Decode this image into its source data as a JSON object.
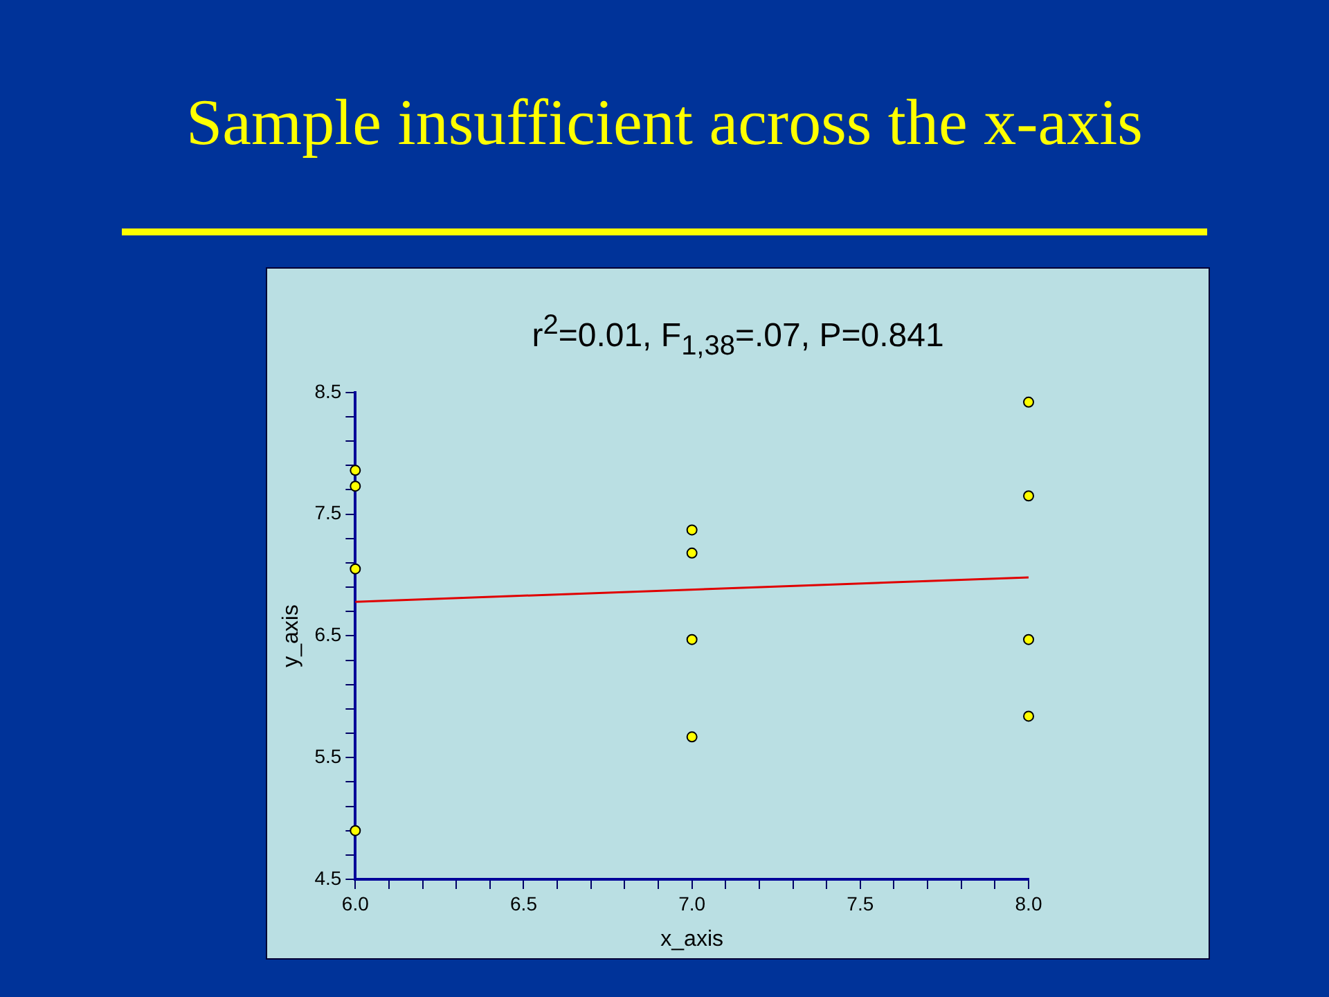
{
  "chart_data": {
    "type": "scatter",
    "title": "Sample insufficient across the x-axis",
    "subtitle": "r$^{2}$=0.01, F$_{1,38}$=.07, P=0.841",
    "xlabel": "x_axis",
    "ylabel": "y_axis",
    "series": [
      {
        "color": "#ffff00",
        "marker": "circle",
        "x": [
          6,
          6,
          6,
          6,
          7,
          7,
          7,
          7,
          8,
          8,
          8,
          8
        ],
        "values": [
          7.86,
          7.73,
          7.05,
          4.9,
          7.37,
          7.18,
          6.47,
          5.67,
          8.42,
          7.65,
          6.47,
          5.84
        ]
      },
      {
        "type": "line",
        "color": "#e00000",
        "marker": "none",
        "line_style": "solid",
        "x": [
          6,
          8
        ],
        "values": [
          6.78,
          6.98
        ]
      }
    ],
    "xlim": [
      6,
      8
    ],
    "ylim": [
      4.5,
      8.5
    ],
    "xticks": [
      {
        "value": 6,
        "label": "6.0"
      },
      {
        "value": 6.1,
        "label": null
      },
      {
        "value": 6.2,
        "label": null
      },
      {
        "value": 6.3,
        "label": null
      },
      {
        "value": 6.4,
        "label": null
      },
      {
        "value": 6.5,
        "label": "6.5"
      },
      {
        "value": 6.6,
        "label": null
      },
      {
        "value": 6.7,
        "label": null
      },
      {
        "value": 6.8,
        "label": null
      },
      {
        "value": 6.9,
        "label": null
      },
      {
        "value": 7,
        "label": "7.0"
      },
      {
        "value": 7.1,
        "label": null
      },
      {
        "value": 7.2,
        "label": null
      },
      {
        "value": 7.3,
        "label": null
      },
      {
        "value": 7.4,
        "label": null
      },
      {
        "value": 7.5,
        "label": "7.5"
      },
      {
        "value": 7.6,
        "label": null
      },
      {
        "value": 7.7,
        "label": null
      },
      {
        "value": 7.8,
        "label": null
      },
      {
        "value": 7.9,
        "label": null
      },
      {
        "value": 8,
        "label": "8.0"
      }
    ],
    "yticks": [
      4.5,
      {
        "value": 4.7,
        "label": null
      },
      {
        "value": 4.9,
        "label": null
      },
      {
        "value": 5.1,
        "label": null
      },
      {
        "value": 5.3,
        "label": null
      },
      5.5,
      {
        "value": 5.7,
        "label": null
      },
      {
        "value": 5.9,
        "label": null
      },
      {
        "value": 6.1,
        "label": null
      },
      {
        "value": 6.3,
        "label": null
      },
      6.5,
      {
        "value": 6.7,
        "label": null
      },
      {
        "value": 6.9,
        "label": null
      },
      {
        "value": 7.1,
        "label": null
      },
      {
        "value": 7.3,
        "label": null
      },
      7.5,
      {
        "value": 7.7,
        "label": null
      },
      {
        "value": 7.9,
        "label": null
      },
      {
        "value": 8.1,
        "label": null
      },
      {
        "value": 8.3,
        "label": null
      },
      8.5
    ],
    "grid": false,
    "legend": false
  }
}
